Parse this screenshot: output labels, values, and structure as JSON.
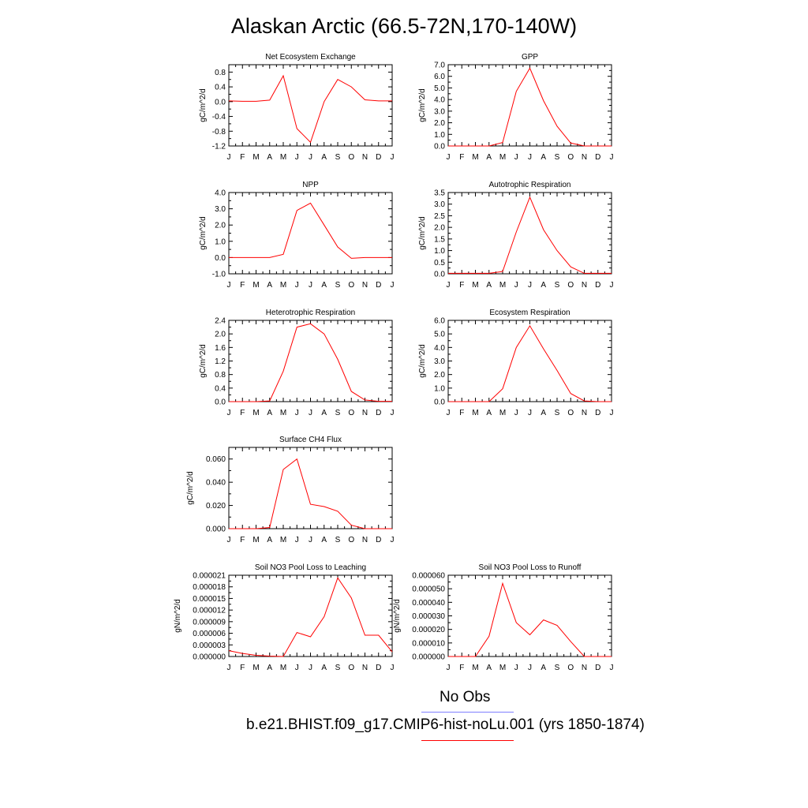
{
  "title": "Alaskan Arctic (66.5-72N,170-140W)",
  "colors": {
    "model": "#ff0000",
    "obs": "#8080ff",
    "axis": "#000000"
  },
  "legend": {
    "obs_label": "No Obs",
    "model_label": "b.e21.BHIST.f09_g17.CMIP6-hist-noLu.001 (yrs 1850-1874)"
  },
  "chart_data": [
    {
      "type": "line",
      "title": "Net Ecosystem Exchange",
      "ylabel": "gC/m^2/d",
      "x": [
        "J",
        "F",
        "M",
        "A",
        "M",
        "J",
        "J",
        "A",
        "S",
        "O",
        "N",
        "D",
        "J"
      ],
      "ylim": [
        -1.2,
        1.0
      ],
      "yticks": [
        -1.2,
        -0.8,
        -0.4,
        0.0,
        0.4,
        0.8
      ],
      "ytick_labels": [
        "-1.2",
        "-0.8",
        "-0.4",
        "0.0",
        "0.4",
        "0.8"
      ],
      "series": [
        {
          "values": [
            0.02,
            0.01,
            0.01,
            0.04,
            0.7,
            -0.73,
            -1.1,
            0.0,
            0.6,
            0.4,
            0.05,
            0.02,
            0.02
          ]
        }
      ]
    },
    {
      "type": "line",
      "title": "GPP",
      "ylabel": "gC/m^2/d",
      "x": [
        "J",
        "F",
        "M",
        "A",
        "M",
        "J",
        "J",
        "A",
        "S",
        "O",
        "N",
        "D",
        "J"
      ],
      "ylim": [
        0,
        7
      ],
      "yticks": [
        0,
        1,
        2,
        3,
        4,
        5,
        6,
        7
      ],
      "ytick_labels": [
        "0.0",
        "1.0",
        "2.0",
        "3.0",
        "4.0",
        "5.0",
        "6.0",
        "7.0"
      ],
      "series": [
        {
          "values": [
            0,
            0,
            0,
            0,
            0.3,
            4.7,
            6.7,
            3.9,
            1.7,
            0.25,
            0,
            0,
            0
          ]
        }
      ]
    },
    {
      "type": "line",
      "title": "NPP",
      "ylabel": "gC/m^2/d",
      "x": [
        "J",
        "F",
        "M",
        "A",
        "M",
        "J",
        "J",
        "A",
        "S",
        "O",
        "N",
        "D",
        "J"
      ],
      "ylim": [
        -1,
        4
      ],
      "yticks": [
        -1,
        0,
        1,
        2,
        3,
        4
      ],
      "ytick_labels": [
        "-1.0",
        "0.0",
        "1.0",
        "2.0",
        "3.0",
        "4.0"
      ],
      "series": [
        {
          "values": [
            0,
            0,
            0,
            0,
            0.2,
            2.9,
            3.35,
            2.0,
            0.65,
            -0.05,
            0,
            0,
            0
          ]
        }
      ]
    },
    {
      "type": "line",
      "title": "Autotrophic Respiration",
      "ylabel": "gC/m^2/d",
      "x": [
        "J",
        "F",
        "M",
        "A",
        "M",
        "J",
        "J",
        "A",
        "S",
        "O",
        "N",
        "D",
        "J"
      ],
      "ylim": [
        0,
        3.5
      ],
      "yticks": [
        0,
        0.5,
        1,
        1.5,
        2,
        2.5,
        3,
        3.5
      ],
      "ytick_labels": [
        "0.0",
        "0.5",
        "1.0",
        "1.5",
        "2.0",
        "2.5",
        "3.0",
        "3.5"
      ],
      "series": [
        {
          "values": [
            0.02,
            0.02,
            0.02,
            0.02,
            0.1,
            1.8,
            3.3,
            1.9,
            1.0,
            0.3,
            0.02,
            0.02,
            0.02
          ]
        }
      ]
    },
    {
      "type": "line",
      "title": "Heterotrophic Respiration",
      "ylabel": "gC/m^2/d",
      "x": [
        "J",
        "F",
        "M",
        "A",
        "M",
        "J",
        "J",
        "A",
        "S",
        "O",
        "N",
        "D",
        "J"
      ],
      "ylim": [
        0,
        2.4
      ],
      "yticks": [
        0,
        0.4,
        0.8,
        1.2,
        1.6,
        2.0,
        2.4
      ],
      "ytick_labels": [
        "0.0",
        "0.4",
        "0.8",
        "1.2",
        "1.6",
        "2.0",
        "2.4"
      ],
      "series": [
        {
          "values": [
            0,
            0,
            0,
            0.02,
            0.9,
            2.2,
            2.3,
            2.0,
            1.25,
            0.3,
            0.05,
            0.01,
            0.01
          ]
        }
      ]
    },
    {
      "type": "line",
      "title": "Ecosystem Respiration",
      "ylabel": "gC/m^2/d",
      "x": [
        "J",
        "F",
        "M",
        "A",
        "M",
        "J",
        "J",
        "A",
        "S",
        "O",
        "N",
        "D",
        "J"
      ],
      "ylim": [
        0,
        6
      ],
      "yticks": [
        0,
        1,
        2,
        3,
        4,
        5,
        6
      ],
      "ytick_labels": [
        "0.0",
        "1.0",
        "2.0",
        "3.0",
        "4.0",
        "5.0",
        "6.0"
      ],
      "series": [
        {
          "values": [
            0,
            0,
            0,
            0,
            0.95,
            4.0,
            5.6,
            3.9,
            2.3,
            0.6,
            0.05,
            0,
            0
          ]
        }
      ]
    },
    {
      "type": "line",
      "title": "Surface CH4 Flux",
      "ylabel": "gC/m^2/d",
      "x": [
        "J",
        "F",
        "M",
        "A",
        "M",
        "J",
        "J",
        "A",
        "S",
        "O",
        "N",
        "D",
        "J"
      ],
      "ylim": [
        0,
        0.07
      ],
      "yticks": [
        0,
        0.02,
        0.04,
        0.06
      ],
      "ytick_labels": [
        "0.000",
        "0.020",
        "0.040",
        "0.060"
      ],
      "series": [
        {
          "values": [
            0,
            0,
            0,
            0.001,
            0.051,
            0.06,
            0.021,
            0.019,
            0.015,
            0.003,
            0,
            0,
            0
          ]
        }
      ]
    },
    {
      "type": "line",
      "title": "Soil NO3 Pool Loss to Leaching",
      "ylabel": "gN/m^2/d",
      "x": [
        "J",
        "F",
        "M",
        "A",
        "M",
        "J",
        "J",
        "A",
        "S",
        "O",
        "N",
        "D",
        "J"
      ],
      "ylim": [
        0,
        2.1e-05
      ],
      "yticks": [
        0,
        3e-06,
        6e-06,
        9e-06,
        1.2e-05,
        1.5e-05,
        1.8e-05,
        2.1e-05
      ],
      "ytick_labels": [
        "0.000000",
        "0.000003",
        "0.000006",
        "0.000009",
        "0.000012",
        "0.000015",
        "0.000018",
        "0.000021"
      ],
      "series": [
        {
          "values": [
            1.5e-06,
            8e-07,
            3e-07,
            1e-07,
            0,
            6.2e-06,
            5.1e-06,
            1.03e-05,
            2.03e-05,
            1.51e-05,
            5.5e-06,
            5.5e-06,
            1.2e-06
          ]
        }
      ]
    },
    {
      "type": "line",
      "title": "Soil NO3 Pool Loss to Runoff",
      "ylabel": "gN/m^2/d",
      "x": [
        "J",
        "F",
        "M",
        "A",
        "M",
        "J",
        "J",
        "A",
        "S",
        "O",
        "N",
        "D",
        "J"
      ],
      "ylim": [
        0,
        6e-05
      ],
      "yticks": [
        0,
        1e-05,
        2e-05,
        3e-05,
        4e-05,
        5e-05,
        6e-05
      ],
      "ytick_labels": [
        "0.000000",
        "0.000010",
        "0.000020",
        "0.000030",
        "0.000040",
        "0.000050",
        "0.000060"
      ],
      "series": [
        {
          "values": [
            0,
            0,
            0,
            1.5e-05,
            5.4e-05,
            2.5e-05,
            1.6e-05,
            2.7e-05,
            2.3e-05,
            1.1e-05,
            0,
            0,
            0
          ]
        }
      ]
    }
  ]
}
